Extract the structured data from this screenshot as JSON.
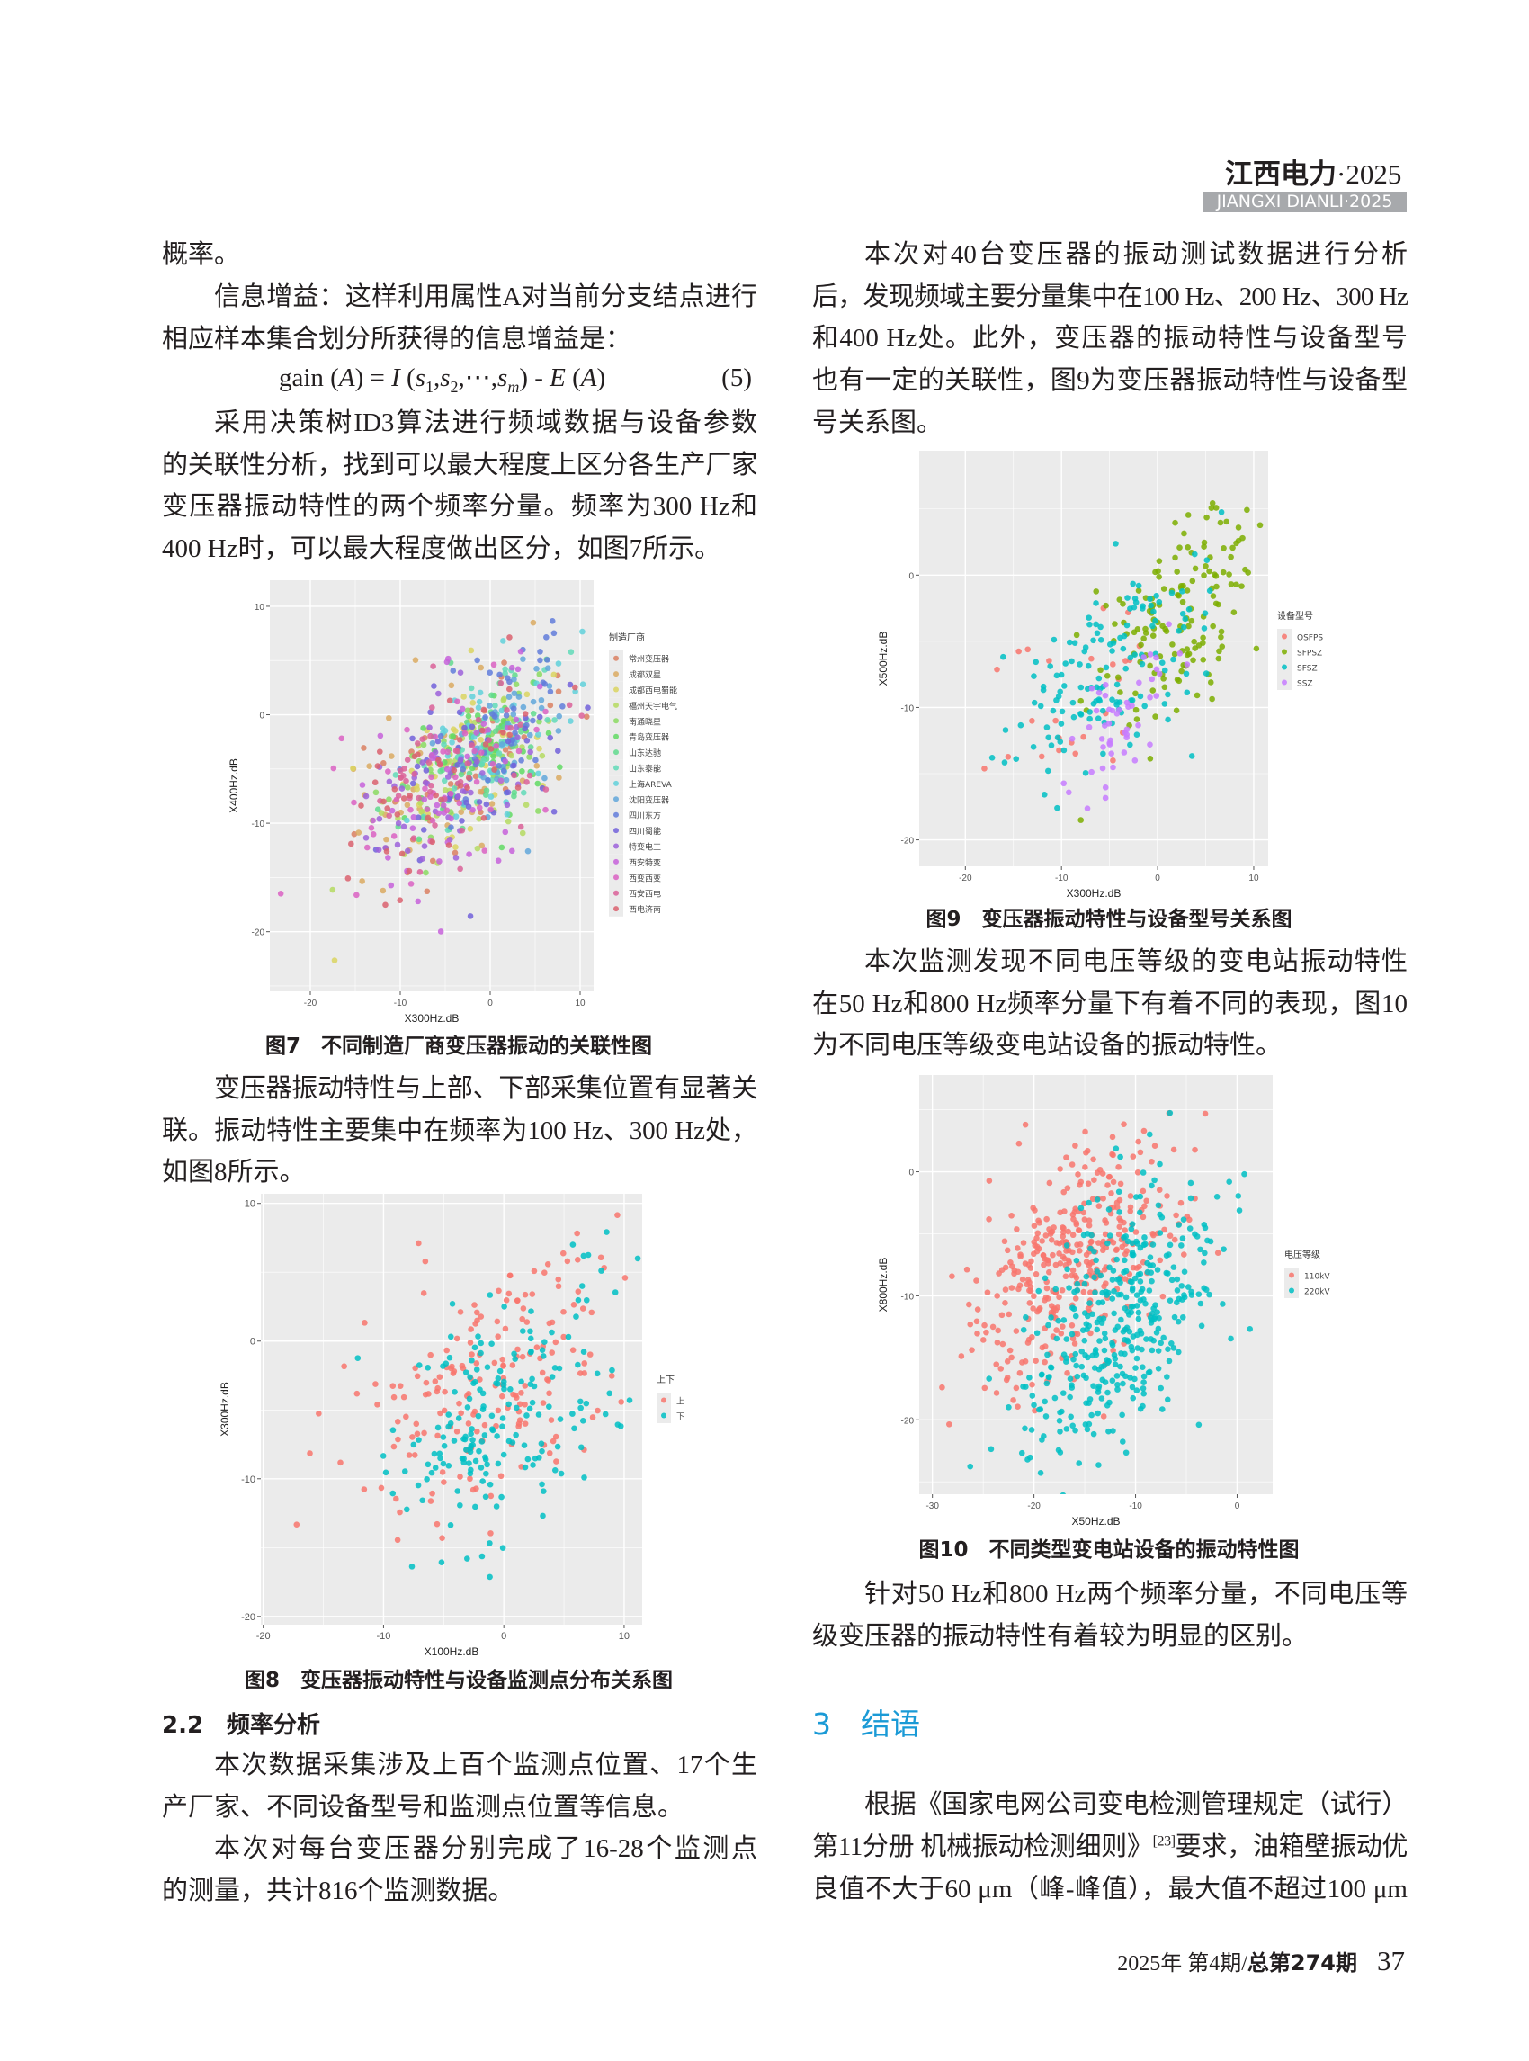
{
  "header": {
    "journal_cn": "江西电力",
    "journal_year": "·2025",
    "journal_en": "JIANGXI DIANLI·2025"
  },
  "left": {
    "p0": [
      "概率。"
    ],
    "p1": [
      "信息增益：这样利用属性A对当前分支结点进行",
      "相应样本集合划分所获得的信息增益是："
    ],
    "formula": {
      "lhs": "gain (",
      "A": "A",
      "eq": ") = ",
      "I": "I",
      "open": " (",
      "s": "s",
      "sub1": "1",
      "sub2": "2",
      "dots": ",⋯,",
      "subm": "m",
      "close": ") - ",
      "E": "E",
      "tail_open": " (",
      "tail_close": ")",
      "number": "(5)"
    },
    "p2": [
      "采用决策树ID3算法进行频域数据与设备参数",
      "的关联性分析，找到可以最大程度上区分各生产厂家",
      "变压器振动特性的两个频率分量。频率为300 Hz和",
      "400 Hz时，可以最大程度做出区分，如图7所示。"
    ],
    "fig7_caption": "图7　不同制造厂商变压器振动的关联性图",
    "p3": [
      "变压器振动特性与上部、下部采集位置有显著关",
      "联。振动特性主要集中在频率为100 Hz、300 Hz处，",
      "如图8所示。"
    ],
    "fig8_caption": "图8　变压器振动特性与设备监测点分布关系图",
    "section_2_2": "2.2　频率分析",
    "p4": [
      "本次数据采集涉及上百个监测点位置、17个生",
      "产厂家、不同设备型号和监测点位置等信息。"
    ],
    "p5": [
      "本次对每台变压器分别完成了16-28个监测点",
      "的测量，共计816个监测数据。"
    ]
  },
  "right": {
    "p1": [
      "本次对40台变压器的振动测试数据进行分析",
      "后，发现频域主要分量集中在100 Hz、200 Hz、300 Hz",
      "和400 Hz处。此外，变压器的振动特性与设备型号",
      "也有一定的关联性，图9为变压器振动特性与设备型",
      "号关系图。"
    ],
    "fig9_caption": "图9　变压器振动特性与设备型号关系图",
    "p2": [
      "本次监测发现不同电压等级的变电站振动特性",
      "在50 Hz和800 Hz频率分量下有着不同的表现，图10",
      "为不同电压等级变电站设备的振动特性。"
    ],
    "fig10_caption": "图10　不同类型变电站设备的振动特性图",
    "p3": [
      "针对50 Hz和800 Hz两个频率分量，不同电压等",
      "级变压器的振动特性有着较为明显的区别。"
    ],
    "section_3": "3　结语",
    "p4_line1": "根据《国家电网公司变电检测管理规定（试行）",
    "p4_line2_a": "第11分册 机械振动检测细则》",
    "p4_line2_sup": "[23]",
    "p4_line2_b": "要求，油箱壁振动优",
    "p4_line3": "良值不大于60 μm（峰-峰值），最大值不超过100 μm"
  },
  "footer": {
    "issue": "2025年 第4期/",
    "total": "总第274期",
    "page": "37"
  },
  "colors": {
    "panel_bg": "#ebebeb",
    "grid": "#ffffff",
    "section_heading": "#1a9ad6",
    "header_bar": "#a7a9ac"
  },
  "chart_data": [
    {
      "id": "fig7",
      "type": "scatter",
      "xlabel": "X300Hz.dB",
      "ylabel": "X400Hz.dB",
      "xlim": [
        -24.5,
        11.5
      ],
      "ylim": [
        -25.5,
        12.4
      ],
      "xticks": [
        -20,
        -10,
        0,
        10
      ],
      "yticks": [
        -20,
        -10,
        0,
        10
      ],
      "grid": true,
      "legend_title": "制造厂商",
      "legend_position": "right",
      "series": [
        {
          "name": "常州变压器",
          "center": [
            -4,
            -6
          ],
          "spread": [
            6,
            5
          ]
        },
        {
          "name": "成都双星",
          "center": [
            -5,
            -6
          ],
          "spread": [
            6,
            5
          ]
        },
        {
          "name": "成都西电蜀能",
          "center": [
            -3,
            -5
          ],
          "spread": [
            5,
            5
          ]
        },
        {
          "name": "福州天宇电气",
          "center": [
            -3,
            -5
          ],
          "spread": [
            5,
            4
          ]
        },
        {
          "name": "南通晓星",
          "center": [
            -2,
            -4
          ],
          "spread": [
            5,
            4
          ]
        },
        {
          "name": "青岛变压器",
          "center": [
            -1,
            -3
          ],
          "spread": [
            4,
            4
          ]
        },
        {
          "name": "山东达驰",
          "center": [
            -1,
            -3
          ],
          "spread": [
            4,
            4
          ]
        },
        {
          "name": "山东泰能",
          "center": [
            0,
            -3
          ],
          "spread": [
            4,
            4
          ]
        },
        {
          "name": "上海AREVA",
          "center": [
            0,
            -2
          ],
          "spread": [
            4,
            4
          ]
        },
        {
          "name": "沈阳变压器",
          "center": [
            1,
            -2
          ],
          "spread": [
            4,
            4
          ]
        },
        {
          "name": "四川东方",
          "center": [
            1,
            -1
          ],
          "spread": [
            4,
            5
          ]
        },
        {
          "name": "四川蜀能",
          "center": [
            -2,
            -5
          ],
          "spread": [
            5,
            5
          ]
        },
        {
          "name": "特变电工",
          "center": [
            -4,
            -6
          ],
          "spread": [
            5,
            5
          ]
        },
        {
          "name": "西安特变",
          "center": [
            -4,
            -7
          ],
          "spread": [
            5,
            5
          ]
        },
        {
          "name": "西变西变",
          "center": [
            -5,
            -7
          ],
          "spread": [
            6,
            5
          ]
        },
        {
          "name": "西安西电",
          "center": [
            -4,
            -6
          ],
          "spread": [
            6,
            5
          ]
        },
        {
          "name": "西电济南",
          "center": [
            -4,
            -6
          ],
          "spread": [
            6,
            5
          ]
        }
      ]
    },
    {
      "id": "fig8",
      "type": "scatter",
      "xlabel": "X100Hz.dB",
      "ylabel": "X300Hz.dB",
      "xlim": [
        -20.2,
        11.5
      ],
      "ylim": [
        -20.6,
        10.7
      ],
      "xticks": [
        -20,
        -10,
        0,
        10
      ],
      "yticks": [
        -20,
        -10,
        0,
        10
      ],
      "grid": true,
      "legend_title": "上下",
      "legend_position": "right",
      "series": [
        {
          "name": "上",
          "center": [
            -1,
            -3
          ],
          "spread": [
            5,
            5
          ],
          "color": "#F8766D"
        },
        {
          "name": "下",
          "center": [
            0,
            -5
          ],
          "spread": [
            5,
            5
          ],
          "color": "#00BFC4"
        }
      ]
    },
    {
      "id": "fig9",
      "type": "scatter",
      "xlabel": "X300Hz.dB",
      "ylabel": "X500Hz.dB",
      "xlim": [
        -24.8,
        11.5
      ],
      "ylim": [
        -22,
        9.4
      ],
      "xticks": [
        -20,
        -10,
        0,
        10
      ],
      "yticks": [
        -20,
        -10,
        0
      ],
      "grid": true,
      "legend_title": "设备型号",
      "legend_position": "right",
      "series": [
        {
          "name": "OSFPS",
          "center": [
            -8,
            -9
          ],
          "spread": [
            5,
            4
          ],
          "color": "#F8766D"
        },
        {
          "name": "SFPSZ",
          "center": [
            2,
            -3
          ],
          "spread": [
            4,
            4
          ],
          "color": "#7CAE00"
        },
        {
          "name": "SFSZ",
          "center": [
            -5,
            -7
          ],
          "spread": [
            5,
            4
          ],
          "color": "#00BFC4"
        },
        {
          "name": "SSZ",
          "center": [
            -4,
            -11
          ],
          "spread": [
            3,
            3
          ],
          "color": "#C77CFF"
        }
      ]
    },
    {
      "id": "fig10",
      "type": "scatter",
      "xlabel": "X50Hz.dB",
      "ylabel": "X800Hz.dB",
      "xlim": [
        -31.3,
        3.5
      ],
      "ylim": [
        -26,
        7.8
      ],
      "xticks": [
        -30,
        -20,
        -10,
        0
      ],
      "yticks": [
        -20,
        -10,
        0
      ],
      "grid": true,
      "legend_title": "电压等级",
      "legend_position": "right",
      "series": [
        {
          "name": "110kV",
          "center": [
            -16,
            -7
          ],
          "spread": [
            5,
            5
          ],
          "color": "#F8766D"
        },
        {
          "name": "220kV",
          "center": [
            -12,
            -13
          ],
          "spread": [
            5,
            6
          ],
          "color": "#00BFC4"
        }
      ]
    }
  ]
}
